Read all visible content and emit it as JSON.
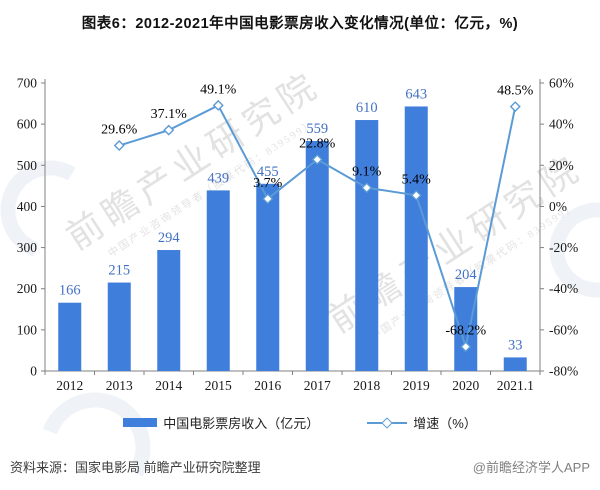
{
  "page": {
    "title": "图表6：2012-2021年中国电影票房收入变化情况(单位：亿元，%)",
    "source_left": "资料来源：国家电影局 前瞻产业研究院整理",
    "source_right": "@前瞻经济学人APP"
  },
  "watermark": {
    "main": "前瞻产业研究院",
    "sub": "中国产业咨询领导者（股票代码：839599）"
  },
  "colors": {
    "bar": "#3F7EDB",
    "line": "#5B9BD5",
    "bar_label": "#4472C4",
    "line_label": "#000000",
    "axis": "#808080",
    "tick_text": "#1a1a1a",
    "watermark": "#c6c6c6"
  },
  "legend": [
    {
      "label": "中国电影票房收入（亿元）",
      "swatch": "bar"
    },
    {
      "label": "增速（%）",
      "swatch": "line"
    }
  ],
  "chart_data": {
    "type": "bar",
    "subtype": "bar+line dual axis",
    "title": "2012-2021年中国电影票房收入变化情况",
    "categories": [
      "2012",
      "2013",
      "2014",
      "2015",
      "2016",
      "2017",
      "2018",
      "2019",
      "2020",
      "2021.1"
    ],
    "series": [
      {
        "name": "中国电影票房收入（亿元）",
        "type": "bar",
        "axis": "left",
        "values": [
          166,
          215,
          294,
          439,
          455,
          559,
          610,
          643,
          204,
          33
        ]
      },
      {
        "name": "增速（%）",
        "type": "line",
        "axis": "right",
        "values": [
          null,
          29.6,
          37.1,
          49.1,
          3.7,
          22.8,
          9.1,
          5.4,
          -68.2,
          48.5
        ]
      }
    ],
    "left_axis": {
      "min": 0,
      "max": 700,
      "step": 100,
      "ticks": [
        0,
        100,
        200,
        300,
        400,
        500,
        600,
        700
      ]
    },
    "right_axis": {
      "min": -80,
      "max": 60,
      "step": 20,
      "suffix": "%",
      "ticks": [
        -80,
        -60,
        -40,
        -20,
        0,
        20,
        40,
        60
      ]
    },
    "xlabel": "",
    "ylabel_left": "亿元",
    "ylabel_right": "%",
    "grid": false,
    "legend_position": "bottom"
  }
}
